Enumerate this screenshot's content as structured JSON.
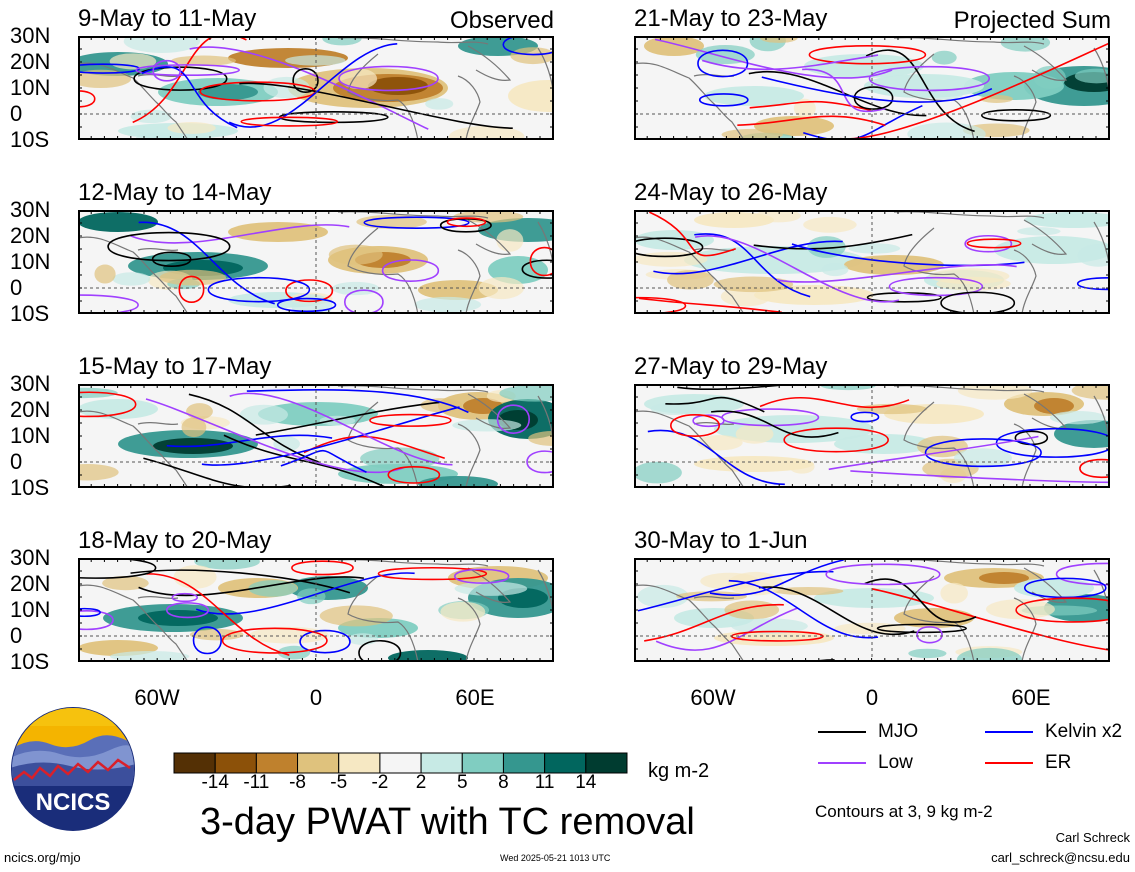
{
  "header": {
    "observed_label": "Observed",
    "projected_label": "Projected Sum"
  },
  "panels": [
    {
      "title": "9-May to 11-May"
    },
    {
      "title": "12-May to 14-May"
    },
    {
      "title": "15-May to 17-May"
    },
    {
      "title": "18-May to 20-May"
    },
    {
      "title": "21-May to 23-May"
    },
    {
      "title": "24-May to 26-May"
    },
    {
      "title": "27-May to 29-May"
    },
    {
      "title": "30-May to 1-Jun"
    }
  ],
  "lat_labels": [
    "30N",
    "20N",
    "10N",
    "0",
    "10S"
  ],
  "lon_labels": [
    "60W",
    "0",
    "60E"
  ],
  "colorbar": {
    "ticks": [
      "-14",
      "-11",
      "-8",
      "-5",
      "-2",
      "2",
      "5",
      "8",
      "11",
      "14"
    ],
    "colors": [
      "#543005",
      "#8c5109",
      "#bf812d",
      "#dfc27d",
      "#f6e8c3",
      "#f5f5f5",
      "#c7eae5",
      "#80cdc1",
      "#35978f",
      "#01665e",
      "#003c30"
    ],
    "units": "kg m-2"
  },
  "legend": {
    "items": [
      {
        "label": "MJO",
        "color": "#000000"
      },
      {
        "label": "Kelvin x2",
        "color": "#0000ff"
      },
      {
        "label": "Low",
        "color": "#a040ff"
      },
      {
        "label": "ER",
        "color": "#ff0000"
      }
    ],
    "contours_note": "Contours at 3, 9 kg m-2"
  },
  "main_title": "3-day PWAT with TC removal",
  "logo": {
    "text": "NCICS"
  },
  "footer": {
    "url": "ncics.org/mjo",
    "timestamp": "Wed 2025-05-21 1013 UTC",
    "author": "Carl Schreck",
    "email": "carl_schreck@ncsu.edu"
  }
}
